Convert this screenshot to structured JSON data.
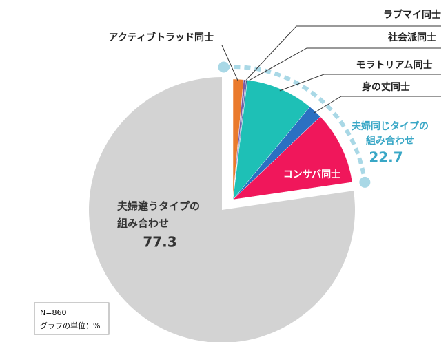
{
  "chart_data": {
    "type": "pie",
    "slices": [
      {
        "name": "アクティブトラッド同士",
        "value": 1.4,
        "color": "#ea7a2c"
      },
      {
        "name": "ラブマイ同士",
        "value": 0.3,
        "color": "#7d5aa8"
      },
      {
        "name": "社会派同士",
        "value": 0.2,
        "color": "#5b72aa"
      },
      {
        "name": "モラトリアム同士",
        "value": 9.1,
        "color": "#1ec0b6"
      },
      {
        "name": "身の丈同士",
        "value": 1.9,
        "color": "#2b70c2"
      },
      {
        "name": "コンサバ同士",
        "value": 9.8,
        "color": "#f0175b"
      }
    ],
    "group": {
      "label": [
        "夫婦同じタイプの",
        "組み合わせ"
      ],
      "value": 22.7,
      "color": "#39a7c6"
    },
    "rest": {
      "label": [
        "夫婦違うタイプの",
        "組み合わせ"
      ],
      "value": 77.3,
      "color": "#d3d3d3"
    },
    "note": [
      "N=860",
      "グラフの単位：%"
    ]
  }
}
